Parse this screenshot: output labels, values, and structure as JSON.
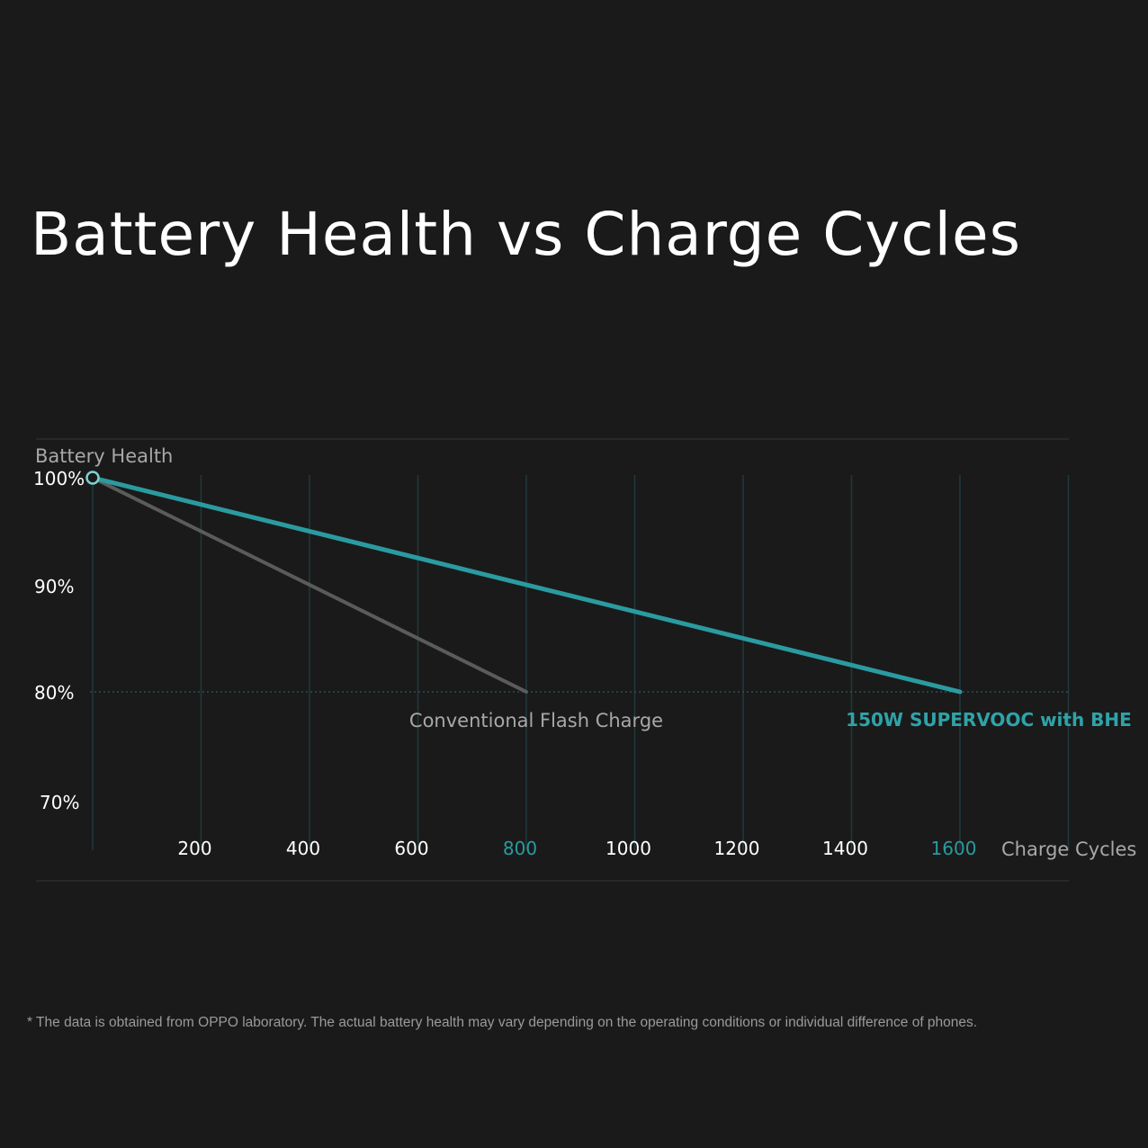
{
  "chart_data": {
    "type": "line",
    "title": "Battery Health vs Charge Cycles",
    "ylabel": "Battery Health",
    "xlabel": "Charge Cycles",
    "ylim": [
      70,
      100
    ],
    "xlim": [
      0,
      1800
    ],
    "y_ticks": [
      {
        "value": 100,
        "label": "100%"
      },
      {
        "value": 90,
        "label": "90%"
      },
      {
        "value": 80,
        "label": "80%"
      },
      {
        "value": 70,
        "label": "70%"
      }
    ],
    "x_ticks": [
      {
        "value": 200,
        "label": "200",
        "highlight": false
      },
      {
        "value": 400,
        "label": "400",
        "highlight": false
      },
      {
        "value": 600,
        "label": "600",
        "highlight": false
      },
      {
        "value": 800,
        "label": "800",
        "highlight": true
      },
      {
        "value": 1000,
        "label": "1000",
        "highlight": false
      },
      {
        "value": 1200,
        "label": "1200",
        "highlight": false
      },
      {
        "value": 1400,
        "label": "1400",
        "highlight": false
      },
      {
        "value": 1600,
        "label": "1600",
        "highlight": true
      }
    ],
    "gridlines_x": [
      0,
      200,
      400,
      600,
      800,
      1000,
      1200,
      1400,
      1600,
      1800
    ],
    "reference_line_y": 80,
    "series": [
      {
        "name": "Conventional Flash Charge",
        "color": "#5b5b5b",
        "label_color": "#a8a8a8",
        "points": [
          {
            "x": 0,
            "y": 100
          },
          {
            "x": 800,
            "y": 80
          }
        ]
      },
      {
        "name": "150W SUPERVOOC with BHE",
        "color": "#2a9ba0",
        "label_color": "#2fa3a8",
        "points": [
          {
            "x": 0,
            "y": 100
          },
          {
            "x": 1600,
            "y": 80
          }
        ]
      }
    ],
    "colors": {
      "background": "#1a1a1a",
      "text": "#ffffff",
      "grid": "#1f3a3c",
      "accent": "#2a9ba0"
    }
  },
  "footnote": "* The data is obtained from OPPO laboratory. The actual battery health may vary depending on the operating conditions or individual difference of phones."
}
